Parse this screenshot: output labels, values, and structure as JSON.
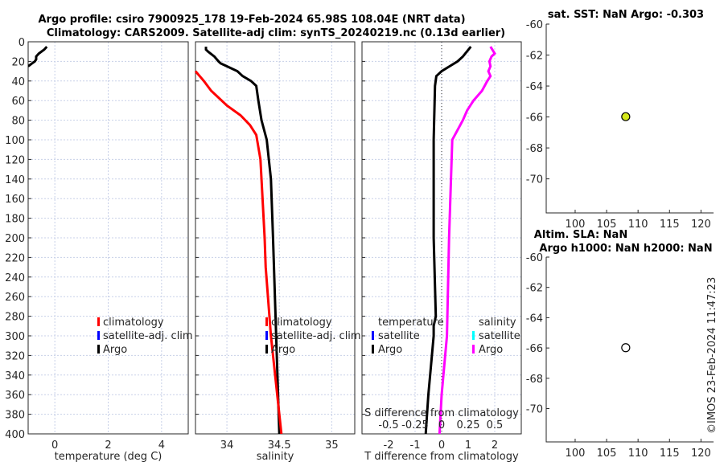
{
  "titles": {
    "line1": "Argo profile: csiro 7900925_178 19-Feb-2024 65.98S 108.04E (NRT data)",
    "line2": "Climatology: CARS2009. Satellite-adj clim: synTS_20240219.nc (0.13d earlier)"
  },
  "copyright": "©IMOS 23-Feb-2024 11:47:23",
  "colors": {
    "argo": "#000000",
    "climatology": "#ff0000",
    "satellite": "#0000ff",
    "salinity_satellite": "#00ffff",
    "salinity_argo": "#ff00ff",
    "grid": "#c8d0e8"
  },
  "chart_data": [
    {
      "type": "line",
      "name": "temperature",
      "xlabel": "temperature (deg C)",
      "ylabel": "",
      "xlim": [
        -1,
        5
      ],
      "ylim": [
        400,
        0
      ],
      "xticks": [
        "0",
        "2",
        "4"
      ],
      "xtickvals": [
        0,
        2,
        4
      ],
      "yticks": [
        "0",
        "20",
        "40",
        "60",
        "80",
        "100",
        "120",
        "140",
        "160",
        "180",
        "200",
        "220",
        "240",
        "260",
        "280",
        "300",
        "320",
        "340",
        "360",
        "380",
        "400"
      ],
      "grid": true,
      "legend": [
        "climatology",
        "satellite-adj. clim",
        "Argo"
      ],
      "series": [
        {
          "name": "Argo",
          "depth": [
            5,
            8,
            12,
            15,
            18,
            20,
            22,
            25
          ],
          "values": [
            -0.3,
            -0.4,
            -0.6,
            -0.7,
            -0.7,
            -0.75,
            -0.85,
            -1.0
          ]
        }
      ]
    },
    {
      "type": "line",
      "name": "salinity",
      "xlabel": "salinity",
      "xlim": [
        33.7,
        35.22
      ],
      "ylim": [
        400,
        0
      ],
      "xticks": [
        "34",
        "34.5",
        "35"
      ],
      "xtickvals": [
        34,
        34.5,
        35
      ],
      "grid": true,
      "legend": [
        "climatology",
        "satellite-adj. clim",
        "Argo"
      ],
      "series": [
        {
          "name": "Argo",
          "depth": [
            5,
            8,
            10,
            15,
            20,
            22,
            25,
            30,
            35,
            40,
            45,
            60,
            80,
            100,
            140,
            200,
            300,
            400
          ],
          "values": [
            33.8,
            33.8,
            33.82,
            33.88,
            33.92,
            33.94,
            34.0,
            34.1,
            34.15,
            34.23,
            34.28,
            34.3,
            34.33,
            34.38,
            34.42,
            34.44,
            34.47,
            34.5
          ]
        },
        {
          "name": "climatology",
          "depth": [
            30,
            40,
            50,
            65,
            75,
            85,
            95,
            120,
            200,
            230,
            300,
            350,
            380,
            400
          ],
          "values": [
            33.7,
            33.78,
            33.85,
            34.0,
            34.13,
            34.22,
            34.28,
            34.32,
            34.36,
            34.37,
            34.42,
            34.47,
            34.5,
            34.52
          ]
        }
      ]
    },
    {
      "type": "line",
      "name": "difference",
      "xlabel": "T difference from climatology",
      "x2label": "S difference from climatology",
      "xlim": [
        -3,
        3
      ],
      "x2lim": [
        -0.75,
        0.75
      ],
      "ylim": [
        400,
        0
      ],
      "xticks": [
        "-2",
        "-1",
        "0",
        "1",
        "2"
      ],
      "xtickvals": [
        -2,
        -1,
        0,
        1,
        2
      ],
      "x2ticks": [
        "-0.5",
        "-0.25",
        "0",
        "0.25",
        "0.5"
      ],
      "x2tickvals": [
        -0.5,
        -0.25,
        0,
        0.25,
        0.5
      ],
      "grid": true,
      "legend_t": {
        "title": "temperature",
        "items": [
          "satellite",
          "Argo"
        ]
      },
      "legend_s": {
        "title": "salinity",
        "items": [
          "satellite",
          "Argo"
        ]
      },
      "series": [
        {
          "name": "T Argo",
          "depth": [
            5,
            10,
            15,
            20,
            25,
            30,
            35,
            45,
            100,
            200,
            280,
            290,
            300,
            360,
            400
          ],
          "values": [
            1.1,
            0.95,
            0.8,
            0.6,
            0.3,
            0.0,
            -0.2,
            -0.25,
            -0.3,
            -0.3,
            -0.22,
            -0.3,
            -0.3,
            -0.5,
            -0.6
          ]
        },
        {
          "name": "S Argo",
          "depth": [
            5,
            12,
            15,
            20,
            25,
            30,
            35,
            40,
            50,
            60,
            70,
            80,
            100,
            200,
            300,
            360,
            400
          ],
          "values": [
            0.46,
            0.5,
            0.47,
            0.45,
            0.46,
            0.44,
            0.46,
            0.43,
            0.38,
            0.3,
            0.24,
            0.2,
            0.1,
            0.07,
            0.05,
            0.0,
            -0.02
          ]
        }
      ]
    },
    {
      "type": "scatter",
      "name": "sst-map",
      "title": "sat. SST: NaN Argo: -0.303",
      "xlim": [
        95.4,
        122
      ],
      "ylim": [
        -72.2,
        -60
      ],
      "xticks": [
        "100",
        "105",
        "110",
        "115",
        "120"
      ],
      "yticks": [
        "-60",
        "-62",
        "-64",
        "-66",
        "-68",
        "-70"
      ],
      "points": [
        {
          "lon": 108.04,
          "lat": -65.98,
          "fill": "#d4e81a"
        }
      ]
    },
    {
      "type": "scatter",
      "name": "sla-map",
      "title": "Altim. SLA: NaN",
      "title2": "Argo h1000: NaN h2000: NaN",
      "xlim": [
        95.4,
        122
      ],
      "ylim": [
        -72.2,
        -60
      ],
      "xticks": [
        "100",
        "105",
        "110",
        "115",
        "120"
      ],
      "yticks": [
        "-60",
        "-62",
        "-64",
        "-66",
        "-68",
        "-70"
      ],
      "points": [
        {
          "lon": 108.04,
          "lat": -65.98,
          "fill": "#ffffff"
        }
      ]
    }
  ]
}
